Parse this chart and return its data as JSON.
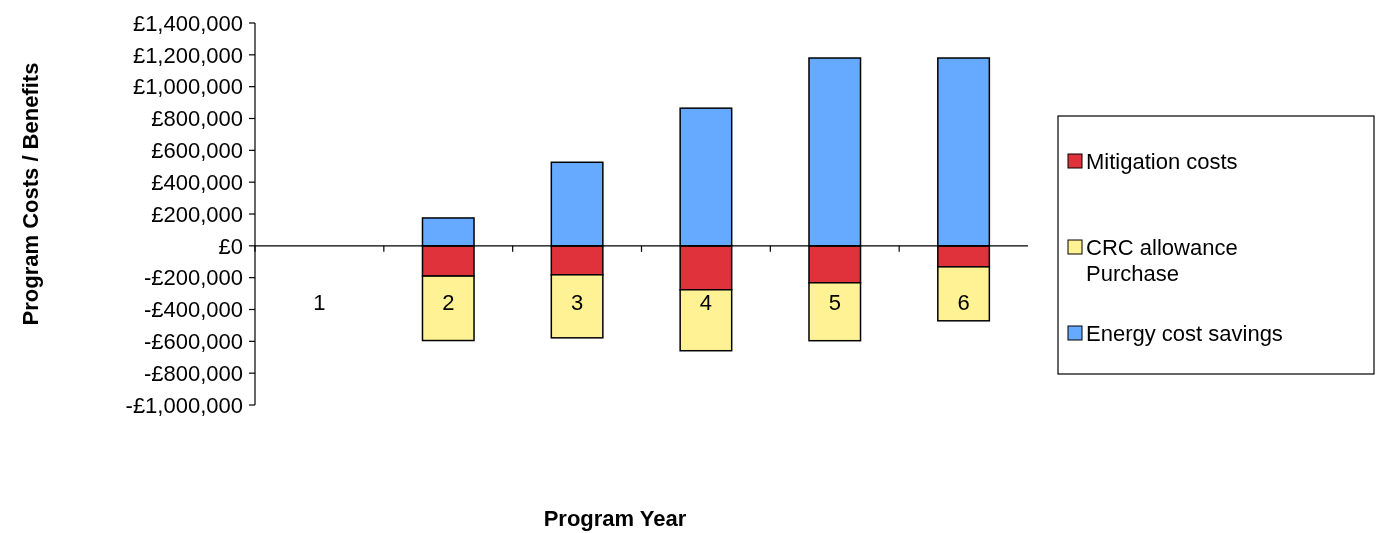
{
  "chart_data": {
    "type": "bar",
    "stacked": true,
    "xlabel": "Program Year",
    "ylabel": "Program Costs / Benefits",
    "categories": [
      "1",
      "2",
      "3",
      "4",
      "5",
      "6"
    ],
    "series": [
      {
        "name": "Mitigation costs",
        "color": "#e0323a",
        "values": [
          0,
          -190000,
          -182000,
          -276000,
          -232000,
          -132000
        ]
      },
      {
        "name": "CRC allowance Purchase",
        "color": "#fff294",
        "values": [
          0,
          -405000,
          -396000,
          -383000,
          -364000,
          -339000
        ]
      },
      {
        "name": "Energy cost savings",
        "color": "#66aaff",
        "values": [
          0,
          175000,
          525000,
          865000,
          1180000,
          1180000
        ]
      }
    ],
    "ylim": [
      -1000000,
      1400000
    ],
    "yticks": [
      {
        "value": -1000000,
        "label": "-£1,000,000"
      },
      {
        "value": -800000,
        "label": "-£800,000"
      },
      {
        "value": -600000,
        "label": "-£600,000"
      },
      {
        "value": -400000,
        "label": "-£400,000"
      },
      {
        "value": -200000,
        "label": "-£200,000"
      },
      {
        "value": 0,
        "label": "£0"
      },
      {
        "value": 200000,
        "label": "£200,000"
      },
      {
        "value": 400000,
        "label": "£400,000"
      },
      {
        "value": 600000,
        "label": "£600,000"
      },
      {
        "value": 800000,
        "label": "£800,000"
      },
      {
        "value": 1000000,
        "label": "£1,000,000"
      },
      {
        "value": 1200000,
        "label": "£1,200,000"
      },
      {
        "value": 1400000,
        "label": "£1,400,000"
      }
    ],
    "grid": false,
    "legend": "right"
  }
}
